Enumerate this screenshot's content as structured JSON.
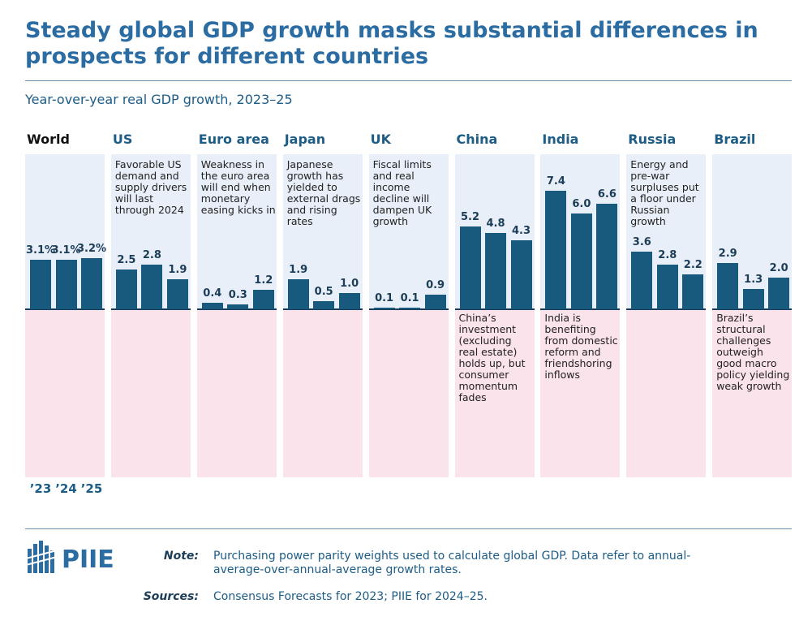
{
  "chart_data": {
    "type": "bar",
    "title": "Steady global GDP growth masks substantial differences in prospects for different countries",
    "subtitle": "Year-over-year real GDP growth, 2023–25",
    "categories": [
      "’23",
      "’24",
      "’25"
    ],
    "color": "#175a7e",
    "ylim": [
      -10.5,
      9.7
    ],
    "panels": [
      {
        "name": "World",
        "values": [
          3.1,
          3.1,
          3.2
        ],
        "value_labels": [
          "3.1%",
          "3.1%",
          "3.2%"
        ]
      },
      {
        "name": "US",
        "annotation": "Favorable US demand and supply drivers will last through 2024",
        "annotation_position": "above",
        "values": [
          2.5,
          2.8,
          1.9
        ],
        "value_labels": [
          "2.5",
          "2.8",
          "1.9"
        ]
      },
      {
        "name": "Euro area",
        "annotation": "Weakness in the euro area will end when monetary easing kicks in",
        "annotation_position": "above",
        "values": [
          0.4,
          0.3,
          1.2
        ],
        "value_labels": [
          "0.4",
          "0.3",
          "1.2"
        ]
      },
      {
        "name": "Japan",
        "annotation": "Japanese growth has yielded to external drags and rising rates",
        "annotation_position": "above",
        "values": [
          1.9,
          0.5,
          1.0
        ],
        "value_labels": [
          "1.9",
          "0.5",
          "1.0"
        ]
      },
      {
        "name": "UK",
        "annotation": "Fiscal limits and real income decline will dampen UK growth",
        "annotation_position": "above",
        "values": [
          0.1,
          0.1,
          0.9
        ],
        "value_labels": [
          "0.1",
          "0.1",
          "0.9"
        ]
      },
      {
        "name": "China",
        "annotation": "China’s investment (excluding real estate) holds up, but consumer momentum fades",
        "annotation_position": "below",
        "values": [
          5.2,
          4.8,
          4.3
        ],
        "value_labels": [
          "5.2",
          "4.8",
          "4.3"
        ]
      },
      {
        "name": "India",
        "annotation": "India is benefiting from domestic reform and friendshoring inflows",
        "annotation_position": "below",
        "values": [
          7.4,
          6.0,
          6.6
        ],
        "value_labels": [
          "7.4",
          "6.0",
          "6.6"
        ]
      },
      {
        "name": "Russia",
        "annotation": "Energy and pre-war surpluses put a floor under Russian growth",
        "annotation_position": "above",
        "values": [
          3.6,
          2.8,
          2.2
        ],
        "value_labels": [
          "3.6",
          "2.8",
          "2.2"
        ]
      },
      {
        "name": "Brazil",
        "annotation": "Brazil’s structural challenges outweigh good macro policy yielding weak growth",
        "annotation_position": "below",
        "values": [
          2.9,
          1.3,
          2.0
        ],
        "value_labels": [
          "2.9",
          "1.3",
          "2.0"
        ]
      }
    ]
  },
  "footer": {
    "logo": "PIIE",
    "note_label": "Note:",
    "note": "Purchasing power parity weights used to calculate global GDP. Data refer to annual-average-over-annual-average growth rates.",
    "sources_label": "Sources:",
    "sources": "Consensus Forecasts for 2023; PIIE for 2024–25."
  }
}
